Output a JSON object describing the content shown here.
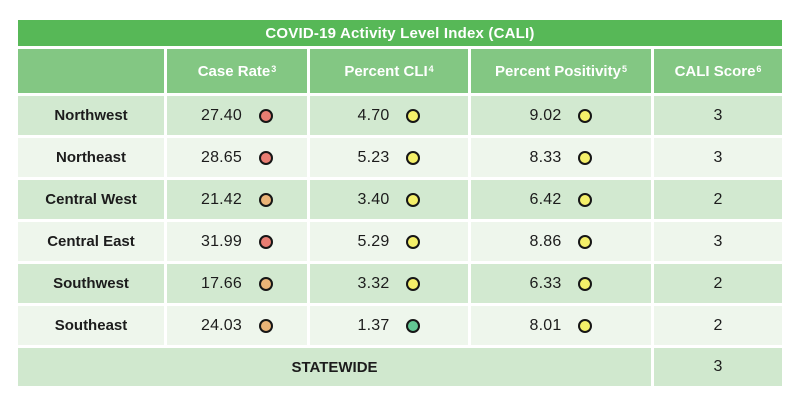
{
  "chart_data": {
    "type": "table",
    "title": "COVID-19 Activity Level Index (CALI)",
    "columns": [
      {
        "label": "",
        "sup": ""
      },
      {
        "label": "Case Rate",
        "sup": "3"
      },
      {
        "label": "Percent CLI",
        "sup": "4"
      },
      {
        "label": "Percent Positivity",
        "sup": "5"
      },
      {
        "label": "CALI Score",
        "sup": "6"
      }
    ],
    "rows": [
      {
        "region": "Northwest",
        "case_rate": "27.40",
        "case_rate_level": "red",
        "percent_cli": "4.70",
        "percent_cli_level": "yellow",
        "percent_positivity": "9.02",
        "percent_positivity_level": "yellow",
        "cali_score": "3"
      },
      {
        "region": "Northeast",
        "case_rate": "28.65",
        "case_rate_level": "red",
        "percent_cli": "5.23",
        "percent_cli_level": "yellow",
        "percent_positivity": "8.33",
        "percent_positivity_level": "yellow",
        "cali_score": "3"
      },
      {
        "region": "Central West",
        "case_rate": "21.42",
        "case_rate_level": "orange",
        "percent_cli": "3.40",
        "percent_cli_level": "yellow",
        "percent_positivity": "6.42",
        "percent_positivity_level": "yellow",
        "cali_score": "2"
      },
      {
        "region": "Central East",
        "case_rate": "31.99",
        "case_rate_level": "red",
        "percent_cli": "5.29",
        "percent_cli_level": "yellow",
        "percent_positivity": "8.86",
        "percent_positivity_level": "yellow",
        "cali_score": "3"
      },
      {
        "region": "Southwest",
        "case_rate": "17.66",
        "case_rate_level": "orange",
        "percent_cli": "3.32",
        "percent_cli_level": "yellow",
        "percent_positivity": "6.33",
        "percent_positivity_level": "yellow",
        "cali_score": "2"
      },
      {
        "region": "Southeast",
        "case_rate": "24.03",
        "case_rate_level": "orange",
        "percent_cli": "1.37",
        "percent_cli_level": "green",
        "percent_positivity": "8.01",
        "percent_positivity_level": "yellow",
        "cali_score": "2"
      }
    ],
    "statewide": {
      "label": "STATEWIDE",
      "cali_score": "3"
    }
  },
  "colors": {
    "title_bg": "#57b857",
    "header_bg": "#83c783",
    "row_odd_bg": "#d2e9d0",
    "row_even_bg": "#eef6ec",
    "statewide_bg": "#d0e8ce",
    "indicator_red": "#e87d72",
    "indicator_orange": "#eab377",
    "indicator_yellow": "#f4ef69",
    "indicator_green": "#62c793",
    "indicator_border": "#161616",
    "header_text": "#ffffff",
    "body_text": "#1c1c1c"
  }
}
